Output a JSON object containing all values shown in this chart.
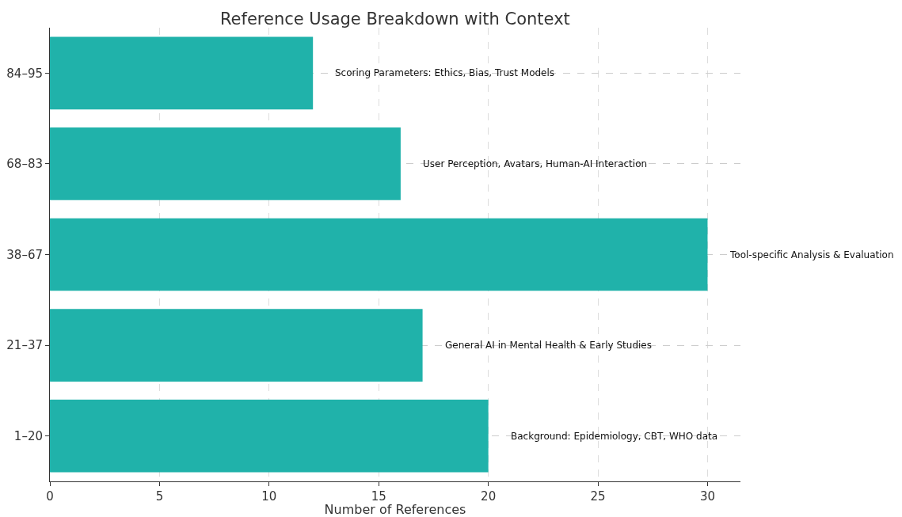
{
  "chart_data": {
    "type": "bar",
    "orientation": "horizontal",
    "title": "Reference Usage Breakdown with Context",
    "xlabel": "Number of References",
    "categories": [
      "84–95",
      "68–83",
      "38–67",
      "21–37",
      "1–20"
    ],
    "values": [
      12,
      16,
      30,
      17,
      20
    ],
    "color": "#20b2aa",
    "xlim": [
      0,
      31.5
    ],
    "xticks": [
      0,
      5,
      10,
      15,
      20,
      25,
      30
    ],
    "grid": true,
    "annotations": [
      "Scoring Parameters: Ethics, Bias, Trust Models",
      "User Perception, Avatars, Human-AI Interaction",
      "Tool-specific Analysis & Evaluation",
      "General AI in Mental Health & Early Studies",
      "Background: Epidemiology, CBT, WHO data"
    ]
  }
}
